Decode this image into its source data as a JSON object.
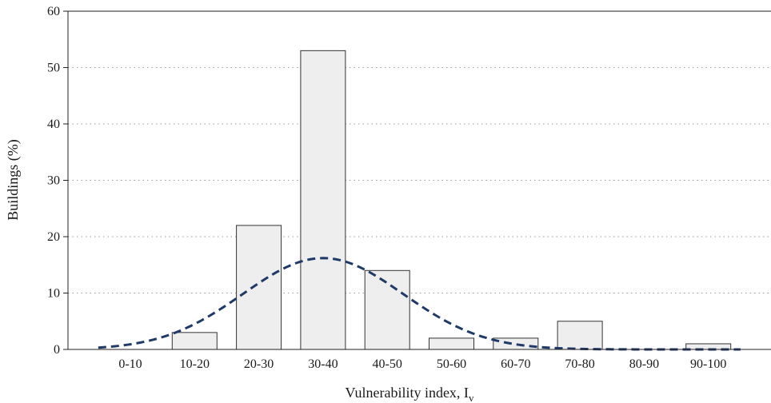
{
  "chart_data": {
    "type": "bar",
    "xlabel": "Vulnerability index, I",
    "xlabel_subscript": "v",
    "ylabel": "Buildings (%)",
    "categories": [
      "0-10",
      "10-20",
      "20-30",
      "30-40",
      "40-50",
      "50-60",
      "60-70",
      "70-80",
      "80-90",
      "90-100"
    ],
    "values": [
      0,
      3,
      22,
      53,
      14,
      2,
      2,
      5,
      0,
      1
    ],
    "ylim": [
      0,
      60
    ],
    "yticks": [
      0,
      10,
      20,
      30,
      40,
      50,
      60
    ],
    "grid": "horizontal dotted",
    "bar_color": "#eeeeee",
    "bar_edge_color": "#333333",
    "curve": {
      "type": "normal distribution fit",
      "style": "dashed",
      "color": "#1f3a68",
      "mean": 35,
      "sd": 12.5,
      "peak": 16.2,
      "x_range": [
        0,
        100
      ]
    }
  }
}
